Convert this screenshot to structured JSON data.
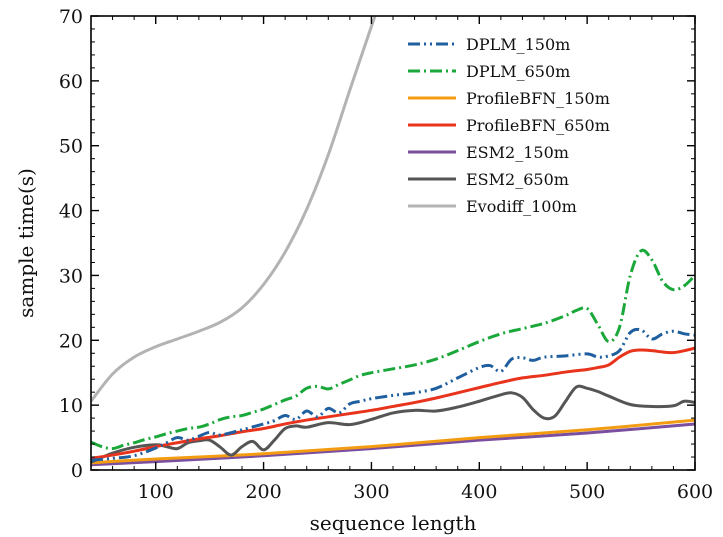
{
  "chart_data": {
    "type": "line",
    "xlabel": "sequence length",
    "ylabel": "sample time(s)",
    "xlim": [
      40,
      600
    ],
    "ylim": [
      0,
      70
    ],
    "xticks": [
      100,
      200,
      300,
      400,
      500,
      600
    ],
    "yticks": [
      0,
      10,
      20,
      30,
      40,
      50,
      60,
      70
    ],
    "grid": false,
    "legend_position": "top-right",
    "series": [
      {
        "name": "DPLM_150m",
        "color": "#1f5f9f",
        "style": "dash-dot-dot",
        "x": [
          40,
          60,
          80,
          100,
          110,
          120,
          130,
          140,
          150,
          160,
          180,
          200,
          210,
          220,
          230,
          240,
          250,
          260,
          270,
          280,
          290,
          300,
          320,
          340,
          360,
          380,
          400,
          410,
          420,
          430,
          440,
          450,
          460,
          480,
          500,
          510,
          520,
          530,
          540,
          550,
          560,
          570,
          580,
          590,
          600
        ],
        "y": [
          1.5,
          1.8,
          2.2,
          3.4,
          4.2,
          5.0,
          4.6,
          5.2,
          5.8,
          5.4,
          6.2,
          7.1,
          7.6,
          8.4,
          7.8,
          9.1,
          8.2,
          9.5,
          8.8,
          10.2,
          10.6,
          11.0,
          11.5,
          11.9,
          12.6,
          14.2,
          15.8,
          16.1,
          15.2,
          17.1,
          17.3,
          16.9,
          17.4,
          17.6,
          17.9,
          17.4,
          17.6,
          18.4,
          21.2,
          21.6,
          20.2,
          21.0,
          21.4,
          21.0,
          20.8
        ]
      },
      {
        "name": "DPLM_650m",
        "color": "#1aa83a",
        "style": "dash-dot",
        "x": [
          40,
          50,
          60,
          70,
          80,
          90,
          100,
          110,
          120,
          130,
          140,
          150,
          160,
          170,
          180,
          190,
          200,
          210,
          220,
          230,
          240,
          250,
          260,
          270,
          280,
          290,
          300,
          320,
          340,
          360,
          380,
          400,
          420,
          440,
          460,
          480,
          490,
          500,
          510,
          520,
          530,
          540,
          550,
          560,
          570,
          580,
          590,
          600
        ],
        "y": [
          4.3,
          3.6,
          3.3,
          3.8,
          4.2,
          4.7,
          5.1,
          5.6,
          6.0,
          6.4,
          6.6,
          7.1,
          7.8,
          8.2,
          8.4,
          8.9,
          9.4,
          10.1,
          10.8,
          11.4,
          12.6,
          12.9,
          12.5,
          13.2,
          13.9,
          14.6,
          15.0,
          15.6,
          16.2,
          17.1,
          18.4,
          19.8,
          21.0,
          21.8,
          22.6,
          23.8,
          24.6,
          24.9,
          22.4,
          19.8,
          22.0,
          30.0,
          33.8,
          32.4,
          29.1,
          27.8,
          28.4,
          30.0
        ]
      },
      {
        "name": "ProfileBFN_150m",
        "color": "#f39c12",
        "style": "solid",
        "x": [
          40,
          100,
          200,
          300,
          400,
          500,
          600
        ],
        "y": [
          1.1,
          1.7,
          2.5,
          3.6,
          5.0,
          6.2,
          7.7
        ]
      },
      {
        "name": "ProfileBFN_650m",
        "color": "#e8341c",
        "style": "solid",
        "x": [
          40,
          60,
          80,
          100,
          120,
          140,
          160,
          180,
          200,
          220,
          240,
          260,
          280,
          300,
          320,
          340,
          360,
          380,
          400,
          420,
          440,
          460,
          480,
          500,
          510,
          520,
          530,
          540,
          550,
          560,
          570,
          580,
          590,
          600
        ],
        "y": [
          1.8,
          2.3,
          2.9,
          3.6,
          4.2,
          4.8,
          5.3,
          5.9,
          6.4,
          7.1,
          7.7,
          8.2,
          8.7,
          9.2,
          9.8,
          10.4,
          11.1,
          11.9,
          12.7,
          13.5,
          14.2,
          14.6,
          15.1,
          15.5,
          15.8,
          16.2,
          17.4,
          18.3,
          18.5,
          18.4,
          18.2,
          18.1,
          18.4,
          18.8
        ]
      },
      {
        "name": "ESM2_150m",
        "color": "#7b4fa0",
        "style": "solid",
        "x": [
          40,
          100,
          200,
          300,
          400,
          500,
          600
        ],
        "y": [
          0.8,
          1.3,
          2.2,
          3.3,
          4.6,
          5.7,
          7.1
        ]
      },
      {
        "name": "ESM2_650m",
        "color": "#555555",
        "style": "solid",
        "x": [
          40,
          60,
          80,
          100,
          110,
          120,
          130,
          140,
          150,
          160,
          170,
          180,
          190,
          200,
          210,
          220,
          230,
          240,
          260,
          280,
          300,
          320,
          340,
          360,
          380,
          400,
          420,
          430,
          440,
          450,
          460,
          470,
          480,
          490,
          500,
          510,
          520,
          540,
          560,
          580,
          590,
          600
        ],
        "y": [
          1.2,
          2.6,
          3.5,
          3.9,
          3.6,
          3.3,
          4.2,
          4.5,
          4.6,
          3.5,
          2.3,
          3.6,
          4.4,
          3.1,
          4.6,
          6.4,
          6.8,
          6.6,
          7.3,
          7.0,
          7.8,
          8.8,
          9.2,
          9.1,
          9.7,
          10.6,
          11.6,
          11.9,
          11.2,
          9.3,
          8.0,
          8.3,
          10.6,
          12.8,
          12.6,
          12.1,
          11.4,
          10.1,
          9.8,
          9.9,
          10.6,
          10.4
        ]
      },
      {
        "name": "Evodiff_100m",
        "color": "#b3b3b3",
        "style": "solid",
        "x": [
          40,
          60,
          80,
          100,
          120,
          140,
          160,
          180,
          200,
          220,
          240,
          260,
          280,
          300,
          310,
          320
        ],
        "y": [
          10.6,
          14.8,
          17.4,
          19.0,
          20.2,
          21.4,
          22.8,
          25.0,
          28.6,
          33.6,
          40.2,
          48.6,
          58.6,
          68.4,
          73.2,
          78.0
        ]
      }
    ]
  }
}
